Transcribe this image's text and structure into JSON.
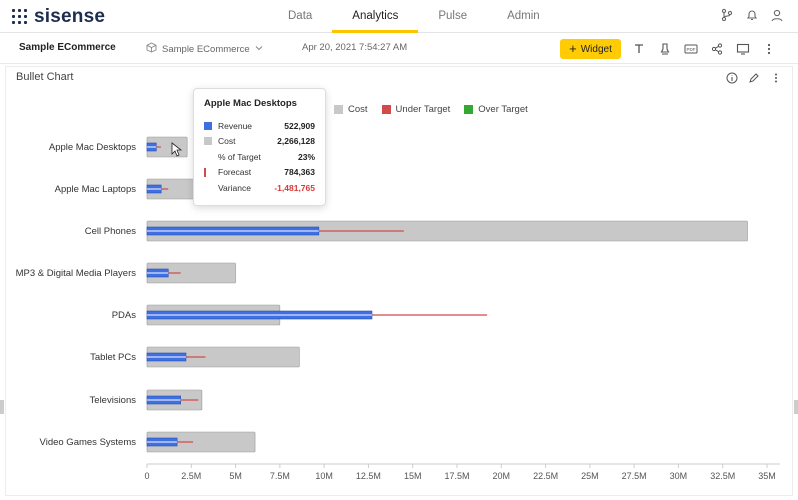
{
  "app": {
    "logo_text": "sisense"
  },
  "nav": {
    "tabs": [
      {
        "label": "Data"
      },
      {
        "label": "Analytics"
      },
      {
        "label": "Pulse"
      },
      {
        "label": "Admin"
      }
    ],
    "active": "Analytics"
  },
  "top_icons": [
    "branch-icon",
    "bell-icon",
    "user-icon"
  ],
  "toolbar": {
    "dashboard_title": "Sample ECommerce",
    "datasource": "Sample ECommerce",
    "timestamp": "Apr 20, 2021 7:54:27 AM",
    "widget_button": "Widget",
    "icons": [
      "text-icon",
      "filter-icon",
      "pdf-icon",
      "share-icon",
      "display-icon",
      "more-icon"
    ]
  },
  "widget": {
    "title": "Bullet Chart",
    "icons": [
      "info-icon",
      "edit-icon",
      "more-icon"
    ]
  },
  "legend": [
    {
      "label": "Cost",
      "color": "#c8c8c8"
    },
    {
      "label": "Under Target",
      "color": "#d24b4b"
    },
    {
      "label": "Over Target",
      "color": "#33a833"
    }
  ],
  "tooltip": {
    "title": "Apple Mac Desktops",
    "rows": [
      {
        "label": "Revenue",
        "value": "522,909",
        "marker": "blue-square"
      },
      {
        "label": "Cost",
        "value": "2,266,128",
        "marker": "gray-square"
      },
      {
        "label": "% of Target",
        "value": "23%",
        "marker": "none"
      },
      {
        "label": "Forecast",
        "value": "784,363",
        "marker": "red-tick"
      },
      {
        "label": "Variance",
        "value": "-1,481,765",
        "marker": "none",
        "negative": true
      }
    ]
  },
  "chart_data": {
    "type": "bar",
    "orientation": "horizontal",
    "categories": [
      "Apple Mac Desktops",
      "Apple Mac Laptops",
      "Cell Phones",
      "MP3 & Digital Media Players",
      "PDAs",
      "Tablet PCs",
      "Televisions",
      "Video Games Systems"
    ],
    "series": [
      {
        "name": "Cost",
        "values": [
          2266128,
          2800000,
          33900000,
          5000000,
          7500000,
          8600000,
          3100000,
          6100000
        ]
      },
      {
        "name": "Revenue",
        "values": [
          522909,
          800000,
          9700000,
          1200000,
          12700000,
          2200000,
          1900000,
          1700000
        ]
      },
      {
        "name": "Forecast",
        "values": [
          784363,
          1200000,
          14500000,
          1900000,
          19200000,
          3300000,
          2900000,
          2600000
        ]
      }
    ],
    "xticks": [
      "0",
      "2.5M",
      "5M",
      "7.5M",
      "10M",
      "12.5M",
      "15M",
      "17.5M",
      "20M",
      "22.5M",
      "25M",
      "27.5M",
      "30M",
      "32.5M",
      "35M"
    ],
    "xlim": [
      0,
      35000000
    ],
    "colors": {
      "cost": "#c8c8c8",
      "revenue": "#3f6fe0",
      "under": "#d24b4b",
      "over": "#33a833"
    }
  }
}
